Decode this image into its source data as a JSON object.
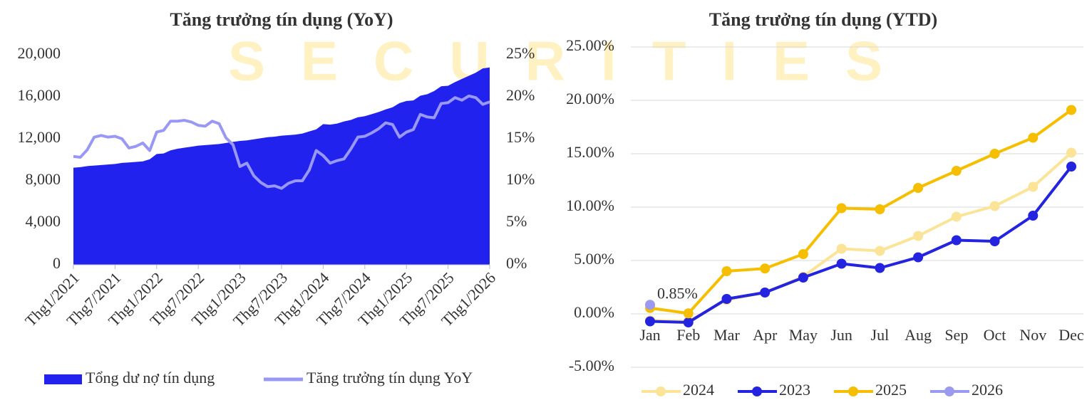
{
  "watermark": "SECURITIES",
  "chart_data": [
    {
      "type": "combo",
      "title": "Tăng trưởng tín dụng (YoY)",
      "categories": [
        "Thg1/2021",
        null,
        null,
        null,
        null,
        null,
        "Thg7/2021",
        null,
        null,
        null,
        null,
        null,
        "Thg1/2022",
        null,
        null,
        null,
        null,
        null,
        "Thg7/2022",
        null,
        null,
        null,
        null,
        null,
        "Thg1/2023",
        null,
        null,
        null,
        null,
        null,
        "Thg7/2023",
        null,
        null,
        null,
        null,
        null,
        "Thg1/2024",
        null,
        null,
        null,
        null,
        null,
        "Thg7/2024",
        null,
        null,
        null,
        null,
        null,
        "Thg1/2025",
        null,
        null,
        null,
        null,
        null,
        "Thg7/2025",
        null,
        null,
        null,
        null,
        null,
        "Thg1/2026"
      ],
      "ylim": [
        0,
        20000
      ],
      "yticks": [
        0,
        {
          "value": 4000,
          "label": "4,000"
        },
        {
          "value": 8000,
          "label": "8,000"
        },
        {
          "value": 12000,
          "label": "12,000"
        },
        {
          "value": 16000,
          "label": "16,000"
        },
        {
          "value": 20000,
          "label": "20,000"
        }
      ],
      "y2lim": [
        0,
        25
      ],
      "y2ticks": [
        {
          "value": 0,
          "label": "0%"
        },
        {
          "value": 5,
          "label": "5%"
        },
        {
          "value": 10,
          "label": "10%"
        },
        {
          "value": 15,
          "label": "15%"
        },
        {
          "value": 20,
          "label": "20%"
        },
        {
          "value": 25,
          "label": "25%"
        }
      ],
      "series": [
        {
          "name": "Tổng dư nợ tín dụng",
          "type": "area",
          "color": "#2222ee",
          "values": [
            9250,
            9300,
            9400,
            9450,
            9500,
            9550,
            9600,
            9700,
            9750,
            9800,
            9850,
            10050,
            10550,
            10600,
            10900,
            11050,
            11150,
            11250,
            11350,
            11400,
            11450,
            11500,
            11600,
            11700,
            11800,
            11850,
            11950,
            12050,
            12150,
            12200,
            12300,
            12350,
            12400,
            12500,
            12700,
            12900,
            13400,
            13350,
            13450,
            13650,
            13800,
            14050,
            14150,
            14350,
            14550,
            14800,
            15000,
            15400,
            15600,
            15650,
            16100,
            16250,
            16550,
            17000,
            17050,
            17400,
            17700,
            18000,
            18300,
            18700,
            18800
          ]
        },
        {
          "name": "Tăng trưởng tín dụng YoY",
          "type": "line",
          "axis": "y2",
          "color": "#9999f5",
          "values": [
            12.9,
            12.8,
            13.7,
            15.2,
            15.4,
            15.2,
            15.3,
            15.0,
            13.9,
            14.1,
            14.5,
            13.6,
            15.8,
            16.0,
            17.1,
            17.1,
            17.2,
            17.0,
            16.6,
            16.5,
            17.1,
            16.8,
            15.1,
            14.3,
            11.7,
            12.1,
            10.6,
            9.8,
            9.3,
            9.4,
            9.1,
            9.7,
            10.0,
            10.0,
            11.3,
            13.6,
            13.0,
            12.1,
            12.4,
            12.6,
            13.8,
            15.2,
            15.3,
            15.7,
            16.2,
            16.9,
            16.7,
            15.2,
            15.8,
            16.1,
            17.9,
            17.6,
            17.5,
            19.2,
            19.3,
            19.9,
            19.6,
            20.1,
            19.9,
            19.1,
            19.4
          ]
        }
      ]
    },
    {
      "type": "line",
      "title": "Tăng trưởng tín dụng (YTD)",
      "categories": [
        "Jan",
        "Feb",
        "Mar",
        "Apr",
        "May",
        "Jun",
        "Jul",
        "Aug",
        "Sep",
        "Oct",
        "Nov",
        "Dec"
      ],
      "ylim": [
        -5,
        25
      ],
      "yticks": [
        {
          "value": -5,
          "label": "-5.00%"
        },
        {
          "value": 0,
          "label": "0.00%"
        },
        {
          "value": 5,
          "label": "5.00%"
        },
        {
          "value": 10,
          "label": "10.00%"
        },
        {
          "value": 15,
          "label": "15.00%"
        },
        {
          "value": 20,
          "label": "20.00%"
        },
        {
          "value": 25,
          "label": "25.00%"
        }
      ],
      "grid": true,
      "legend": "bottom",
      "series": [
        {
          "name": "2024",
          "color": "#fbe497",
          "values": [
            -0.6,
            -0.7,
            1.3,
            2.0,
            3.5,
            6.1,
            5.9,
            7.3,
            9.1,
            10.1,
            11.9,
            15.1
          ]
        },
        {
          "name": "2023",
          "color": "#2323e0",
          "values": [
            -0.7,
            -0.8,
            1.4,
            2.0,
            3.4,
            4.7,
            4.3,
            5.3,
            6.9,
            6.8,
            9.2,
            13.8
          ]
        },
        {
          "name": "2025",
          "color": "#f5bf00",
          "values": [
            0.55,
            0.05,
            4.0,
            4.25,
            5.6,
            9.9,
            9.8,
            11.8,
            13.4,
            15.0,
            16.5,
            19.1
          ]
        },
        {
          "name": "2026",
          "color": "#9a9af0",
          "values": [
            0.85,
            null,
            null,
            null,
            null,
            null,
            null,
            null,
            null,
            null,
            null,
            null
          ],
          "value_labels": [
            "0.85%",
            null,
            null,
            null,
            null,
            null,
            null,
            null,
            null,
            null,
            null,
            null
          ]
        }
      ]
    }
  ]
}
